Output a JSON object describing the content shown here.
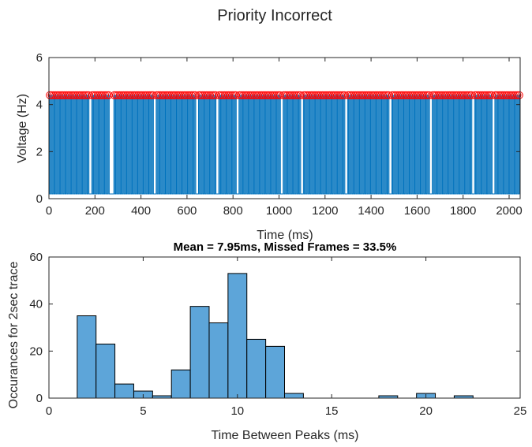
{
  "figure": {
    "suptitle": "Priority Incorrect"
  },
  "chart_data": [
    {
      "type": "line",
      "title": "",
      "xlabel": "Time (ms)",
      "ylabel": "Voltage (Hz)",
      "xlim": [
        0,
        2048
      ],
      "ylim": [
        0,
        6
      ],
      "xticks": [
        0,
        200,
        400,
        600,
        800,
        1000,
        1200,
        1400,
        1600,
        1800,
        2000
      ],
      "yticks": [
        0,
        2,
        4,
        6
      ],
      "grid": false,
      "series": [
        {
          "type": "line",
          "description_kind": "square-wave pulse train",
          "low_value": 0.2,
          "high_value": 4.4,
          "period_ms": 8,
          "color": "#0072BD"
        },
        {
          "type": "scatter",
          "marker": "circle",
          "y_value": 4.4,
          "peak_spacing_ms": 8,
          "color": "#FF0000"
        }
      ],
      "gap_times_ms": [
        182,
        272,
        462,
        642,
        732,
        822,
        1012,
        1102,
        1292,
        1482,
        1662,
        1842,
        1932
      ]
    },
    {
      "type": "bar",
      "title": "Mean = 7.95ms, Missed Frames = 33.5%",
      "xlabel": "Time Between Peaks (ms)",
      "ylabel": "Occurances for 2sec trace",
      "xlim": [
        0,
        25
      ],
      "ylim": [
        0,
        60
      ],
      "xticks": [
        0,
        5,
        10,
        15,
        20,
        25
      ],
      "yticks": [
        0,
        20,
        40,
        60
      ],
      "grid": false,
      "bin_width": 1,
      "bin_starts": [
        1.5,
        2.5,
        3.5,
        4.5,
        5.5,
        6.5,
        7.5,
        8.5,
        9.5,
        10.5,
        11.5,
        12.5,
        13.5,
        14.5,
        15.5,
        16.5,
        17.5,
        18.5,
        19.5,
        20.5,
        21.5,
        22.5
      ],
      "values": [
        35,
        23,
        6,
        3,
        1,
        12,
        39,
        32,
        53,
        25,
        22,
        2,
        0,
        0,
        0,
        0,
        1,
        0,
        2,
        0,
        1,
        0
      ],
      "color": "#5DA5D9"
    }
  ]
}
